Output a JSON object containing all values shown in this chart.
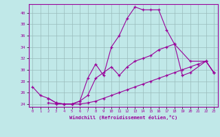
{
  "xlabel": "Windchill (Refroidissement éolien,°C)",
  "bg_color": "#c0e8e8",
  "line_color": "#990099",
  "grid_color": "#99bbbb",
  "xlim": [
    -0.5,
    23.5
  ],
  "ylim": [
    23.5,
    41.5
  ],
  "yticks": [
    24,
    26,
    28,
    30,
    32,
    34,
    36,
    38,
    40
  ],
  "xticks": [
    0,
    1,
    2,
    3,
    4,
    5,
    6,
    7,
    8,
    9,
    10,
    11,
    12,
    13,
    14,
    15,
    16,
    17,
    18,
    19,
    20,
    21,
    22,
    23
  ],
  "line1_x": [
    0,
    1,
    2,
    3,
    4,
    5,
    6,
    7,
    8,
    9,
    10,
    11,
    12,
    13,
    14,
    15,
    16,
    17,
    18,
    20,
    22,
    23
  ],
  "line1_y": [
    27,
    25.5,
    25,
    24.2,
    24,
    24,
    24.5,
    28.5,
    31,
    29,
    34,
    36,
    39,
    41,
    40.5,
    40.5,
    40.5,
    37,
    34.5,
    31.5,
    31.5,
    29.5
  ],
  "line2_x": [
    2,
    3,
    4,
    5,
    6,
    7,
    8,
    9,
    10,
    11,
    12,
    13,
    14,
    15,
    16,
    17,
    18,
    19,
    20,
    22,
    23
  ],
  "line2_y": [
    25,
    24.2,
    24,
    24,
    24.5,
    25.5,
    28.5,
    29.5,
    30.5,
    29,
    30.5,
    31.5,
    32,
    32.5,
    33.5,
    34,
    34.5,
    29,
    29.5,
    31.5,
    29.5
  ],
  "line3_x": [
    2,
    3,
    4,
    5,
    6,
    7,
    8,
    9,
    10,
    11,
    12,
    13,
    14,
    15,
    16,
    17,
    18,
    19,
    20,
    21,
    22,
    23
  ],
  "line3_y": [
    24.2,
    24,
    24,
    24,
    24,
    24.2,
    24.5,
    25,
    25.5,
    26,
    26.5,
    27,
    27.5,
    28,
    28.5,
    29,
    29.5,
    30,
    30.5,
    31,
    31.5,
    29.5
  ]
}
